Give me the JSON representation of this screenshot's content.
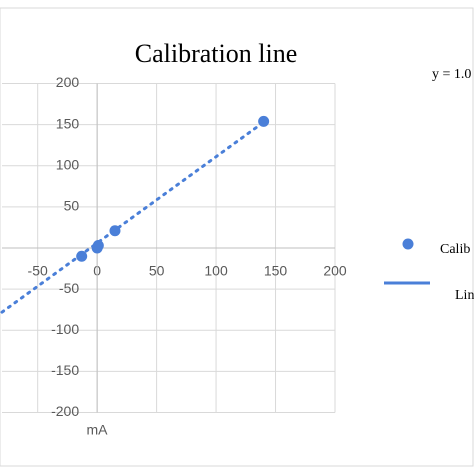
{
  "chart_data": {
    "type": "scatter",
    "title": "Calibration line",
    "x_label": "mA",
    "annotation": "y = 1.0",
    "series": [
      {
        "name": "Calib",
        "color": "#4a7fd8",
        "x": [
          -13,
          0,
          1,
          15,
          140
        ],
        "values": [
          -10,
          0,
          3,
          21,
          154
        ]
      },
      {
        "name": "Lin",
        "color": "#4a7fd8",
        "trendline": true,
        "x": [
          -80,
          140
        ],
        "values": [
          -78,
          153
        ]
      }
    ],
    "xlim": [
      -80,
      200
    ],
    "xticks": [
      -50,
      0,
      50,
      100,
      150,
      200
    ],
    "ylim": [
      -200,
      200
    ],
    "yticks": [
      200,
      150,
      100,
      50,
      -50,
      -100,
      -150,
      -200
    ],
    "grid": true
  }
}
